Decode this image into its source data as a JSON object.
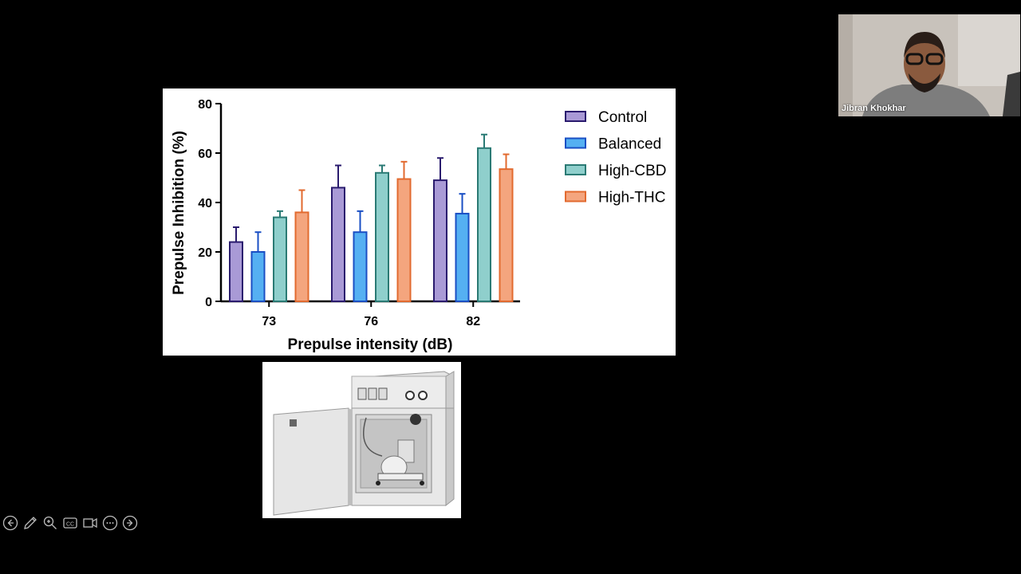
{
  "chart_data": {
    "type": "bar",
    "title": "",
    "xlabel": "Prepulse intensity (dB)",
    "ylabel": "Prepulse Inhibition (%)",
    "categories": [
      "73",
      "76",
      "82"
    ],
    "ylim": [
      0,
      80
    ],
    "yticks": [
      0,
      20,
      40,
      60,
      80
    ],
    "legend_position": "top-right",
    "grid": false,
    "series": [
      {
        "name": "Control",
        "values": [
          24,
          46,
          49
        ],
        "errors": [
          6,
          9,
          9
        ],
        "fill": "#a99ad6",
        "stroke": "#2a1b6e"
      },
      {
        "name": "Balanced",
        "values": [
          20,
          28,
          35.5
        ],
        "errors": [
          8,
          8.5,
          8
        ],
        "fill": "#55b0f2",
        "stroke": "#1a4fc4"
      },
      {
        "name": "High-CBD",
        "values": [
          34,
          52,
          62
        ],
        "errors": [
          2.5,
          3,
          5.5
        ],
        "fill": "#8fcfcc",
        "stroke": "#2a7a74"
      },
      {
        "name": "High-THC",
        "values": [
          36,
          49.5,
          53.5
        ],
        "errors": [
          9,
          7,
          6
        ],
        "fill": "#f4a57e",
        "stroke": "#e26a2f"
      }
    ]
  },
  "video": {
    "participant_name": "Jibran Khokhar"
  },
  "toolbar": {
    "buttons": [
      "previous-icon",
      "pen-icon",
      "zoom-icon",
      "captions-icon",
      "video-icon",
      "more-icon",
      "next-icon"
    ]
  }
}
